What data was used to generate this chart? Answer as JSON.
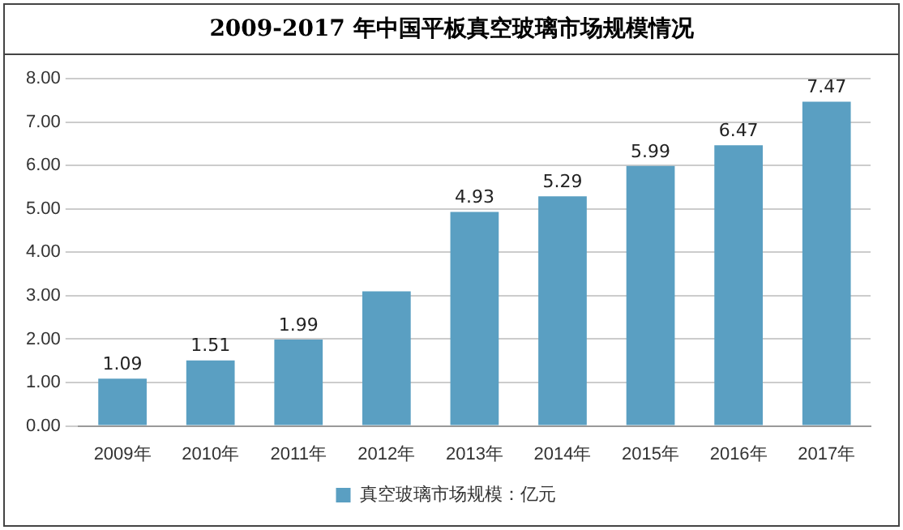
{
  "chart_data": {
    "type": "bar",
    "title": "2009-2017 年中国平板真空玻璃市场规模情况",
    "categories": [
      "2009年",
      "2010年",
      "2011年",
      "2012年",
      "2013年",
      "2014年",
      "2015年",
      "2016年",
      "2017年"
    ],
    "series": [
      {
        "name": "真空玻璃市场规模：亿元",
        "color": "#5a9fc2",
        "values": [
          1.09,
          1.51,
          1.99,
          3.1,
          4.93,
          5.29,
          5.99,
          6.47,
          7.47
        ],
        "value_labels": [
          "1.09",
          "1.51",
          "1.99",
          null,
          "4.93",
          "5.29",
          "5.99",
          "6.47",
          "7.47"
        ]
      }
    ],
    "ylim": [
      0,
      8
    ],
    "yticks": [
      {
        "value": 0,
        "label": "0.00"
      },
      {
        "value": 1,
        "label": "1.00"
      },
      {
        "value": 2,
        "label": "2.00"
      },
      {
        "value": 3,
        "label": "3.00"
      },
      {
        "value": 4,
        "label": "4.00"
      },
      {
        "value": 5,
        "label": "5.00"
      },
      {
        "value": 6,
        "label": "6.00"
      },
      {
        "value": 7,
        "label": "7.00"
      },
      {
        "value": 8,
        "label": "8.00"
      }
    ],
    "grid": "y",
    "legend": "bottom"
  }
}
